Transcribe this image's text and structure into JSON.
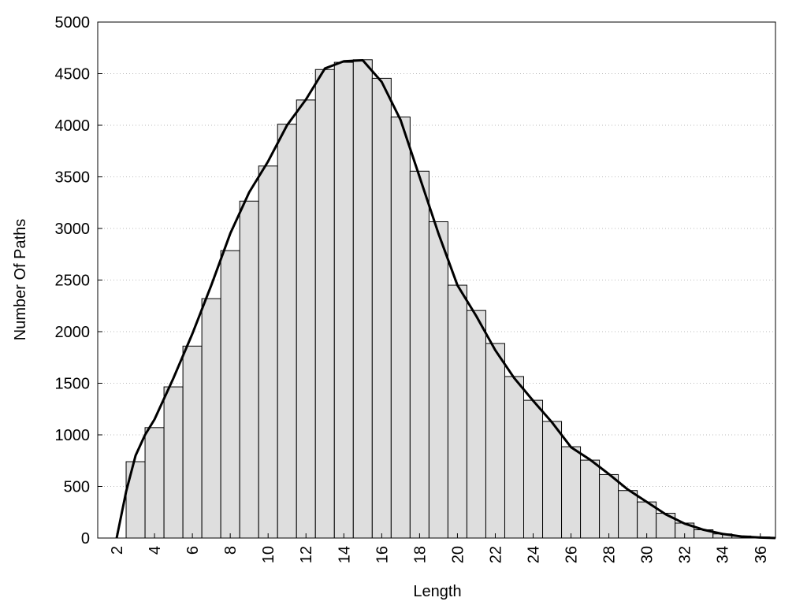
{
  "chart_data": {
    "type": "histogram",
    "xlabel": "Length",
    "ylabel": "Number Of Paths",
    "bins": [
      2.5,
      3.5,
      4.5,
      5.5,
      6.5,
      7.5,
      8.5,
      9.5,
      10.5,
      11.5,
      12.5,
      13.5,
      14.5,
      15.5,
      16.5,
      17.5,
      18.5,
      19.5,
      20.5,
      21.5,
      22.5,
      23.5,
      24.5,
      25.5,
      26.5,
      27.5,
      28.5,
      29.5,
      30.5,
      31.5,
      32.5,
      33.5,
      34.5,
      35.5,
      36.5
    ],
    "counts": [
      740,
      1070,
      1465,
      1860,
      2320,
      2785,
      3265,
      3605,
      4010,
      4245,
      4540,
      4610,
      4635,
      4455,
      4080,
      3555,
      3065,
      2450,
      2205,
      1885,
      1565,
      1335,
      1130,
      885,
      755,
      615,
      460,
      350,
      240,
      145,
      80,
      40,
      20,
      10
    ],
    "bar_color": "#dedede",
    "curve": {
      "color": "#000000",
      "x": [
        2,
        2.5,
        3,
        3.5,
        4,
        5,
        6,
        7,
        8,
        9,
        10,
        11,
        12,
        13,
        14,
        15,
        16,
        17,
        18,
        19,
        20,
        21,
        22,
        23,
        24,
        25,
        26,
        27,
        28,
        29,
        30,
        31,
        32,
        33,
        34,
        35,
        36,
        36.8
      ],
      "values": [
        0,
        450,
        800,
        1000,
        1150,
        1550,
        1980,
        2450,
        2950,
        3350,
        3650,
        4000,
        4250,
        4550,
        4620,
        4630,
        4420,
        4050,
        3500,
        2950,
        2450,
        2150,
        1820,
        1550,
        1330,
        1120,
        880,
        760,
        620,
        470,
        350,
        230,
        140,
        80,
        40,
        15,
        5,
        0
      ]
    },
    "xlim": [
      1,
      36.8
    ],
    "ylim": [
      0,
      5000
    ],
    "xticks": [
      2,
      4,
      6,
      8,
      10,
      12,
      14,
      16,
      18,
      20,
      22,
      24,
      26,
      28,
      30,
      32,
      34,
      36
    ],
    "yticks": [
      0,
      500,
      1000,
      1500,
      2000,
      2500,
      3000,
      3500,
      4000,
      4500,
      5000
    ],
    "grid": true
  }
}
